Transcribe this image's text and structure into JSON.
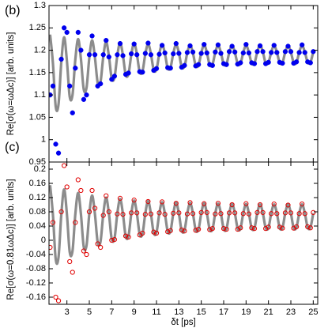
{
  "chart_data": [
    {
      "type": "scatter",
      "panel_label": "(b)",
      "ylabel": "Re[σ(ω=ωΔc)] [arb. units]",
      "xlim": [
        1.4,
        25.4
      ],
      "ylim": [
        0.95,
        1.3
      ],
      "yticks": [
        0.95,
        1,
        1.05,
        1.1,
        1.15,
        1.2,
        1.25,
        1.3
      ],
      "x": [
        1.5,
        1.75,
        2,
        2.25,
        2.5,
        2.75,
        3,
        3.25,
        3.5,
        3.75,
        4,
        4.25,
        4.5,
        4.75,
        5,
        5.25,
        5.5,
        5.75,
        6,
        6.25,
        6.5,
        6.75,
        7,
        7.25,
        7.5,
        7.75,
        8,
        8.25,
        8.5,
        8.75,
        9,
        9.25,
        9.5,
        9.75,
        10,
        10.25,
        10.5,
        10.75,
        11,
        11.25,
        11.5,
        11.75,
        12,
        12.25,
        12.5,
        12.75,
        13,
        13.25,
        13.5,
        13.75,
        14,
        14.25,
        14.5,
        14.75,
        15,
        15.25,
        15.5,
        15.75,
        16,
        16.25,
        16.5,
        16.75,
        17,
        17.25,
        17.5,
        17.75,
        18,
        18.25,
        18.5,
        18.75,
        19,
        19.25,
        19.5,
        19.75,
        20,
        20.25,
        20.5,
        20.75,
        21,
        21.25,
        21.5,
        21.75,
        22,
        22.25,
        22.5,
        22.75,
        23,
        23.25,
        23.5,
        23.75,
        24,
        24.25,
        24.5,
        24.75,
        25
      ],
      "series": [
        {
          "mode": "line",
          "color": "#8c8c8c",
          "values": [
            1.235,
            1.171,
            1.074,
            1.079,
            1.174,
            1.229,
            1.176,
            1.096,
            1.1,
            1.179,
            1.225,
            1.181,
            1.113,
            1.116,
            1.183,
            1.222,
            1.184,
            1.127,
            1.129,
            1.186,
            1.219,
            1.187,
            1.137,
            1.139,
            1.188,
            1.217,
            1.189,
            1.145,
            1.147,
            1.19,
            1.216,
            1.191,
            1.151,
            1.153,
            1.191,
            1.214,
            1.192,
            1.156,
            1.157,
            1.192,
            1.213,
            1.193,
            1.16,
            1.161,
            1.193,
            1.213,
            1.194,
            1.163,
            1.164,
            1.194,
            1.212,
            1.194,
            1.166,
            1.166,
            1.194,
            1.212,
            1.195,
            1.167,
            1.168,
            1.195,
            1.211,
            1.195,
            1.169,
            1.169,
            1.195,
            1.211,
            1.195,
            1.17,
            1.17,
            1.195,
            1.211,
            1.195,
            1.171,
            1.171,
            1.196,
            1.211,
            1.196,
            1.171,
            1.172,
            1.196,
            1.21,
            1.196,
            1.172,
            1.172,
            1.196,
            1.21,
            1.196,
            1.172,
            1.172,
            1.196,
            1.21,
            1.196,
            1.173,
            1.173,
            1.196
          ]
        },
        {
          "mode": "filled",
          "color": "#0000ee",
          "values": [
            1.1,
            1.12,
            0.99,
            0.97,
            1.18,
            1.25,
            1.24,
            1.12,
            1.06,
            1.16,
            1.24,
            1.2,
            1.09,
            1.1,
            1.19,
            1.232,
            1.19,
            1.12,
            1.125,
            1.19,
            1.222,
            1.185,
            1.135,
            1.142,
            1.19,
            1.215,
            1.188,
            1.146,
            1.149,
            1.192,
            1.214,
            1.19,
            1.152,
            1.151,
            1.193,
            1.216,
            1.19,
            1.155,
            1.159,
            1.191,
            1.211,
            1.194,
            1.161,
            1.16,
            1.192,
            1.215,
            1.193,
            1.162,
            1.166,
            1.195,
            1.21,
            1.196,
            1.165,
            1.168,
            1.193,
            1.213,
            1.194,
            1.168,
            1.166,
            1.196,
            1.212,
            1.193,
            1.17,
            1.168,
            1.197,
            1.209,
            1.196,
            1.169,
            1.172,
            1.194,
            1.213,
            1.194,
            1.172,
            1.17,
            1.197,
            1.21,
            1.197,
            1.17,
            1.173,
            1.195,
            1.211,
            1.195,
            1.173,
            1.171,
            1.197,
            1.209,
            1.197,
            1.171,
            1.174,
            1.195,
            1.212,
            1.195,
            1.174,
            1.172,
            1.197
          ]
        }
      ]
    },
    {
      "type": "scatter",
      "panel_label": "(c)",
      "ylabel": "Re[σ(ω=0.81ωΔc)] [arb. units]",
      "xlabel": "δt [ps]",
      "xlim": [
        1.4,
        25.4
      ],
      "ylim": [
        -0.18,
        0.22
      ],
      "xticks": [
        3,
        5,
        7,
        9,
        11,
        13,
        15,
        17,
        19,
        21,
        23,
        25
      ],
      "yticks": [
        -0.16,
        -0.12,
        -0.08,
        -0.04,
        0,
        0.04,
        0.08,
        0.12,
        0.16,
        0.2
      ],
      "x": [
        1.5,
        1.75,
        2,
        2.25,
        2.5,
        2.75,
        3,
        3.25,
        3.5,
        3.75,
        4,
        4.25,
        4.5,
        4.75,
        5,
        5.25,
        5.5,
        5.75,
        6,
        6.25,
        6.5,
        6.75,
        7,
        7.25,
        7.5,
        7.75,
        8,
        8.25,
        8.5,
        8.75,
        9,
        9.25,
        9.5,
        9.75,
        10,
        10.25,
        10.5,
        10.75,
        11,
        11.25,
        11.5,
        11.75,
        12,
        12.25,
        12.5,
        12.75,
        13,
        13.25,
        13.5,
        13.75,
        14,
        14.25,
        14.5,
        14.75,
        15,
        15.25,
        15.5,
        15.75,
        16,
        16.25,
        16.5,
        16.75,
        17,
        17.25,
        17.5,
        17.75,
        18,
        18.25,
        18.5,
        18.75,
        19,
        19.25,
        19.5,
        19.75,
        20,
        20.25,
        20.5,
        20.75,
        21,
        21.25,
        21.5,
        21.75,
        22,
        22.25,
        22.5,
        22.75,
        23,
        23.25,
        23.5,
        23.75,
        24,
        24.25,
        24.5,
        24.75,
        25
      ],
      "series": [
        {
          "mode": "line",
          "color": "#8c8c8c",
          "values": [
            0.155,
            0.072,
            -0.053,
            -0.048,
            0.073,
            0.143,
            0.073,
            -0.033,
            -0.03,
            0.073,
            0.133,
            0.074,
            -0.018,
            -0.015,
            0.074,
            0.126,
            0.074,
            -0.006,
            -0.004,
            0.074,
            0.12,
            0.075,
            0.004,
            0.005,
            0.075,
            0.116,
            0.075,
            0.011,
            0.012,
            0.075,
            0.112,
            0.075,
            0.017,
            0.018,
            0.075,
            0.11,
            0.075,
            0.021,
            0.022,
            0.075,
            0.107,
            0.075,
            0.025,
            0.025,
            0.075,
            0.106,
            0.075,
            0.027,
            0.028,
            0.075,
            0.105,
            0.076,
            0.029,
            0.03,
            0.076,
            0.104,
            0.076,
            0.031,
            0.031,
            0.076,
            0.103,
            0.076,
            0.032,
            0.032,
            0.076,
            0.102,
            0.076,
            0.033,
            0.033,
            0.076,
            0.102,
            0.076,
            0.034,
            0.034,
            0.076,
            0.101,
            0.076,
            0.035,
            0.035,
            0.076,
            0.101,
            0.076,
            0.035,
            0.035,
            0.076,
            0.101,
            0.076,
            0.035,
            0.036,
            0.076,
            0.101,
            0.076,
            0.036,
            0.036,
            0.076
          ]
        },
        {
          "mode": "open",
          "color": "#e00000",
          "values": [
            -0.02,
            0.05,
            -0.16,
            -0.17,
            0.08,
            0.21,
            0.15,
            -0.06,
            -0.09,
            0.05,
            0.17,
            0.14,
            -0.03,
            -0.04,
            0.08,
            0.14,
            0.09,
            -0.01,
            -0.02,
            0.07,
            0.125,
            0.08,
            0,
            0.002,
            0.074,
            0.118,
            0.073,
            0.012,
            0.009,
            0.077,
            0.113,
            0.077,
            0.015,
            0.02,
            0.073,
            0.109,
            0.074,
            0.023,
            0.02,
            0.077,
            0.108,
            0.073,
            0.024,
            0.027,
            0.076,
            0.104,
            0.077,
            0.029,
            0.026,
            0.074,
            0.106,
            0.075,
            0.028,
            0.031,
            0.078,
            0.103,
            0.078,
            0.03,
            0.033,
            0.074,
            0.104,
            0.075,
            0.033,
            0.031,
            0.077,
            0.1,
            0.077,
            0.031,
            0.035,
            0.075,
            0.103,
            0.074,
            0.035,
            0.033,
            0.078,
            0.1,
            0.078,
            0.033,
            0.037,
            0.075,
            0.102,
            0.075,
            0.037,
            0.034,
            0.077,
            0.099,
            0.077,
            0.034,
            0.038,
            0.075,
            0.102,
            0.075,
            0.038,
            0.035,
            0.078
          ]
        }
      ]
    }
  ]
}
